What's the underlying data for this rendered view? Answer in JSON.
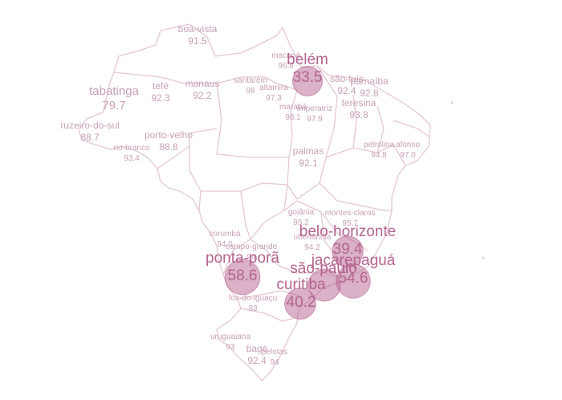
{
  "map": {
    "marker_color": "#b5648f",
    "border_color": "#e4c7d4",
    "label_color": "#c9a0b8",
    "cities": [
      {
        "key": "boa-vista",
        "name": "boa-vista",
        "value": "91.5",
        "size": "s"
      },
      {
        "key": "macapa",
        "name": "macapá",
        "value": "96.6",
        "size": "xs"
      },
      {
        "key": "belem",
        "name": "belém",
        "value": "33.5",
        "size": "xl",
        "bubble": 33.5
      },
      {
        "key": "sao-luis",
        "name": "são-luís",
        "value": "92.4",
        "size": "s"
      },
      {
        "key": "parnaiba",
        "name": "parnaíba",
        "value": "92.8",
        "size": "s"
      },
      {
        "key": "tabatinga",
        "name": "tabatinga",
        "value": "79.7",
        "size": "m"
      },
      {
        "key": "tefe",
        "name": "tefé",
        "value": "92.3",
        "size": "s"
      },
      {
        "key": "manaus",
        "name": "manaus",
        "value": "92.2",
        "size": "s"
      },
      {
        "key": "santarem",
        "name": "santarém",
        "value": "98",
        "size": "xs"
      },
      {
        "key": "altamira",
        "name": "altamira",
        "value": "97.3",
        "size": "xs"
      },
      {
        "key": "teresina",
        "name": "teresina",
        "value": "93.8",
        "size": "s"
      },
      {
        "key": "maraba",
        "name": "marabá",
        "value": "98.1",
        "size": "xs"
      },
      {
        "key": "imperatriz",
        "name": "imperatriz",
        "value": "97.9",
        "size": "xs"
      },
      {
        "key": "cruzeiro-do-sul",
        "name": "ruzeiro-do-sul",
        "value": "88.7",
        "size": "s"
      },
      {
        "key": "porto-velho",
        "name": "porto-velho",
        "value": "88.8",
        "size": "s"
      },
      {
        "key": "rio-branco",
        "name": "rio-branco",
        "value": "93.4",
        "size": "xs"
      },
      {
        "key": "petrolina",
        "name": "petrolina",
        "value": "94.8",
        "size": "xs"
      },
      {
        "key": "afonso",
        "name": "afonso",
        "value": "97.0",
        "size": "xs"
      },
      {
        "key": "palmas",
        "name": "palmas",
        "value": "92.1",
        "size": "s"
      },
      {
        "key": "goiania",
        "name": "goiânia",
        "value": "95.2",
        "size": "xs"
      },
      {
        "key": "montes-claros",
        "name": "montes-claros",
        "value": "95.7",
        "size": "xs"
      },
      {
        "key": "corumba",
        "name": "corumbá",
        "value": "94.0",
        "size": "xs"
      },
      {
        "key": "campo-grande",
        "name": "campo-grande",
        "value": "94",
        "size": "xs"
      },
      {
        "key": "uberlandia",
        "name": "uberlândia",
        "value": "94.2",
        "size": "xs"
      },
      {
        "key": "belo-horizonte",
        "name": "belo-horizonte",
        "value": "39.4",
        "size": "xl",
        "bubble": 39.4
      },
      {
        "key": "ponta-pora",
        "name": "ponta-porã",
        "value": "58.6",
        "size": "xl",
        "bubble": 58.6
      },
      {
        "key": "sao-paulo",
        "name": "são-paulo",
        "value": "",
        "size": "xl",
        "bubble": 45
      },
      {
        "key": "jacarepagua",
        "name": "jacarepaguá",
        "value": "54.6",
        "size": "xl",
        "bubble": 54.6
      },
      {
        "key": "curitiba",
        "name": "curitiba",
        "value": "40.2",
        "size": "xl",
        "bubble": 40.2
      },
      {
        "key": "foz-do-iguacu",
        "name": "foz-do-iguaçu",
        "value": "93",
        "size": "xs"
      },
      {
        "key": "uruguaiana",
        "name": "uruguaiana",
        "value": "93",
        "size": "xs"
      },
      {
        "key": "bage",
        "name": "bagé",
        "value": "92.4",
        "size": "s"
      },
      {
        "key": "pelotas",
        "name": "pelotas",
        "value": "94",
        "size": "xs"
      }
    ]
  }
}
